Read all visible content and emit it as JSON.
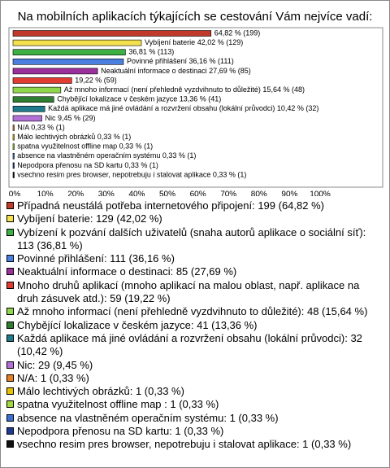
{
  "chart_data": {
    "type": "hbar",
    "title": "Na mobilních aplikacích týkajících se cestování Vám nejvíce vadí:",
    "categories": [
      "Případná neustálá potřeba internetového připojení: 199 (64,82 %)",
      "Vybíjení baterie: 129 (42,02 %)",
      "Vybízení k pozvání dalších uživatelů (snaha autorů aplikace o sociální síť): 113 (36,81 %)",
      "Povinné přihlášení: 111 (36,16 %)",
      "Neaktuální informace o destinaci: 85 (27,69 %)",
      "Mnoho druhů aplikací (mnoho aplikací na malou oblast, např. aplikace na druh zásuvek atd.): 59 (19,22 %)",
      "Až mnoho informací (není přehledně vyzdvihnuto to důležité): 48 (15,64 %)",
      "Chybějící lokalizace v českém jazyce: 41 (13,36 %)",
      "Každá aplikace má jiné ovládání a rozvržení obsahu (lokální průvodci): 32 (10,42 %)",
      "Nic: 29 (9,45 %)",
      "N/A: 1 (0,33 %)",
      "Málo lechtivých obrázků: 1 (0,33 %)",
      "spatna využitelnost offline map : 1 (0,33 %)",
      "absence na vlastněném operačním systému: 1 (0,33 %)",
      "Nepodpora přenosu na SD kartu: 1 (0,33 %)",
      "vsechno resim pres browser, nepotrebuju i stalovat aplikace: 1 (0,33 %)"
    ],
    "values": [
      64.82,
      42.02,
      36.81,
      36.16,
      27.69,
      19.22,
      15.64,
      13.36,
      10.42,
      9.45,
      0.33,
      0.33,
      0.33,
      0.33,
      0.33,
      0.33
    ],
    "value_labels": [
      "64,82 % (199)",
      "Vybíjení baterie 42,02 % (129)",
      "36,81 % (113)",
      "Povinné přihlášení 36,16 % (111)",
      "Neaktuální informace o destinaci 27,69 % (85)",
      "19,22 % (59)",
      "Až mnoho informací (není přehledně vyzdvihnuto to důležité) 15,64 % (48)",
      "Chybějící lokalizace v českém jazyce 13,36 % (41)",
      "Každá aplikace má jiné ovládání a rozvržení obsahu (lokální průvodci) 10,42 % (32)",
      "Nic 9,45 % (29)",
      "N/A 0,33 % (1)",
      "Málo lechtivých obrázků 0,33 % (1)",
      "spatna využitelnost offline map  0,33 % (1)",
      "absence na vlastněném operačním systému 0,33 % (1)",
      "Nepodpora přenosu na SD kartu 0,33 % (1)",
      "vsechno resim pres browser, nepotrebuju i stalovat aplikace 0,33 % (1)"
    ],
    "colors": [
      "#c0392b",
      "#f4e04d",
      "#3cb043",
      "#4a7fe0",
      "#9b2f9b",
      "#e03c31",
      "#8ed64a",
      "#2e7d32",
      "#1f7a8c",
      "#b26fd6",
      "#e67e22",
      "#e6c200",
      "#a2d93b",
      "#3b6fd1",
      "#1f3a93",
      "#111111"
    ],
    "xlim": [
      0,
      100
    ],
    "xticks": [
      {
        "value": 0,
        "label": "0%"
      },
      {
        "value": 10,
        "label": "10%"
      },
      {
        "value": 20,
        "label": "20%"
      },
      {
        "value": 30,
        "label": "30%"
      },
      {
        "value": 40,
        "label": "40%"
      },
      {
        "value": 50,
        "label": "50%"
      },
      {
        "value": 60,
        "label": "60%"
      },
      {
        "value": 70,
        "label": "70%"
      },
      {
        "value": 80,
        "label": "80%"
      },
      {
        "value": 90,
        "label": "90%"
      },
      {
        "value": 100,
        "label": "100%"
      }
    ]
  }
}
